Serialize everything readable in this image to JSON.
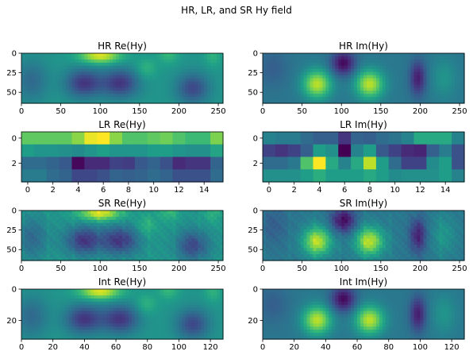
{
  "figure": {
    "suptitle": "HR, LR, and SR Hy field"
  },
  "palette": [
    "#440154",
    "#482878",
    "#3e4989",
    "#31688e",
    "#26828e",
    "#1f9e89",
    "#35b779",
    "#6ece58",
    "#b5de2b",
    "#fde725"
  ],
  "chart_data": [
    {
      "type": "heatmap",
      "title": "HR Re(Hy)",
      "shape": [
        64,
        256
      ],
      "variant": "re",
      "blocky": false,
      "xticks": [
        0,
        50,
        100,
        150,
        200,
        250
      ],
      "yticks": [
        0,
        25,
        50
      ]
    },
    {
      "type": "heatmap",
      "title": "HR Im(Hy)",
      "shape": [
        64,
        256
      ],
      "variant": "im",
      "blocky": false,
      "xticks": [
        0,
        50,
        100,
        150,
        200,
        250
      ],
      "yticks": [
        0,
        25,
        50
      ]
    },
    {
      "type": "heatmap",
      "title": "LR Re(Hy)",
      "shape": [
        4,
        16
      ],
      "variant": "lr_re",
      "blocky": true,
      "xticks": [
        0,
        2,
        4,
        6,
        8,
        10,
        12,
        14
      ],
      "yticks": [
        0,
        2
      ],
      "values": [
        [
          0.75,
          0.75,
          0.75,
          0.75,
          0.82,
          0.97,
          1.0,
          0.82,
          0.72,
          0.72,
          0.75,
          0.78,
          0.72,
          0.68,
          0.68,
          0.8
        ],
        [
          0.55,
          0.52,
          0.52,
          0.5,
          0.48,
          0.52,
          0.56,
          0.52,
          0.52,
          0.52,
          0.55,
          0.55,
          0.52,
          0.5,
          0.5,
          0.58
        ],
        [
          0.35,
          0.35,
          0.32,
          0.28,
          0.02,
          0.12,
          0.12,
          0.2,
          0.18,
          0.28,
          0.32,
          0.25,
          0.12,
          0.15,
          0.15,
          0.32
        ],
        [
          0.42,
          0.42,
          0.35,
          0.32,
          0.22,
          0.22,
          0.25,
          0.32,
          0.3,
          0.32,
          0.35,
          0.32,
          0.25,
          0.25,
          0.25,
          0.35
        ]
      ]
    },
    {
      "type": "heatmap",
      "title": "LR Im(Hy)",
      "shape": [
        4,
        16
      ],
      "variant": "lr_im",
      "blocky": true,
      "xticks": [
        0,
        2,
        4,
        6,
        8,
        10,
        12,
        14
      ],
      "yticks": [
        0,
        2
      ],
      "values": [
        [
          0.45,
          0.42,
          0.42,
          0.35,
          0.3,
          0.3,
          0.15,
          0.32,
          0.3,
          0.35,
          0.38,
          0.45,
          0.6,
          0.6,
          0.6,
          0.45
        ],
        [
          0.2,
          0.15,
          0.2,
          0.3,
          0.55,
          0.5,
          0.0,
          0.45,
          0.55,
          0.28,
          0.2,
          0.12,
          0.1,
          0.3,
          0.42,
          0.25
        ],
        [
          0.35,
          0.35,
          0.4,
          0.72,
          1.0,
          0.6,
          0.45,
          0.6,
          0.9,
          0.55,
          0.35,
          0.2,
          0.2,
          0.48,
          0.55,
          0.25
        ],
        [
          0.5,
          0.5,
          0.5,
          0.55,
          0.62,
          0.55,
          0.55,
          0.55,
          0.6,
          0.55,
          0.48,
          0.5,
          0.5,
          0.5,
          0.55,
          0.45
        ]
      ]
    },
    {
      "type": "heatmap",
      "title": "SR Re(Hy)",
      "shape": [
        64,
        256
      ],
      "variant": "re",
      "blocky": false,
      "noisy": true,
      "xticks": [
        0,
        50,
        100,
        150,
        200,
        250
      ],
      "yticks": [
        0,
        25,
        50
      ]
    },
    {
      "type": "heatmap",
      "title": "SR Im(Hy)",
      "shape": [
        64,
        256
      ],
      "variant": "im",
      "blocky": false,
      "noisy": true,
      "xticks": [
        0,
        50,
        100,
        150,
        200,
        250
      ],
      "yticks": [
        0,
        25,
        50
      ]
    },
    {
      "type": "heatmap",
      "title": "Int Re(Hy)",
      "shape": [
        32,
        128
      ],
      "variant": "re",
      "blocky": false,
      "xticks": [
        0,
        20,
        40,
        60,
        80,
        100,
        120
      ],
      "yticks": [
        0,
        20
      ]
    },
    {
      "type": "heatmap",
      "title": "Int Im(Hy)",
      "shape": [
        32,
        128
      ],
      "variant": "im",
      "blocky": false,
      "xticks": [
        0,
        20,
        40,
        60,
        80,
        100,
        120
      ],
      "yticks": [
        0,
        20
      ]
    }
  ]
}
